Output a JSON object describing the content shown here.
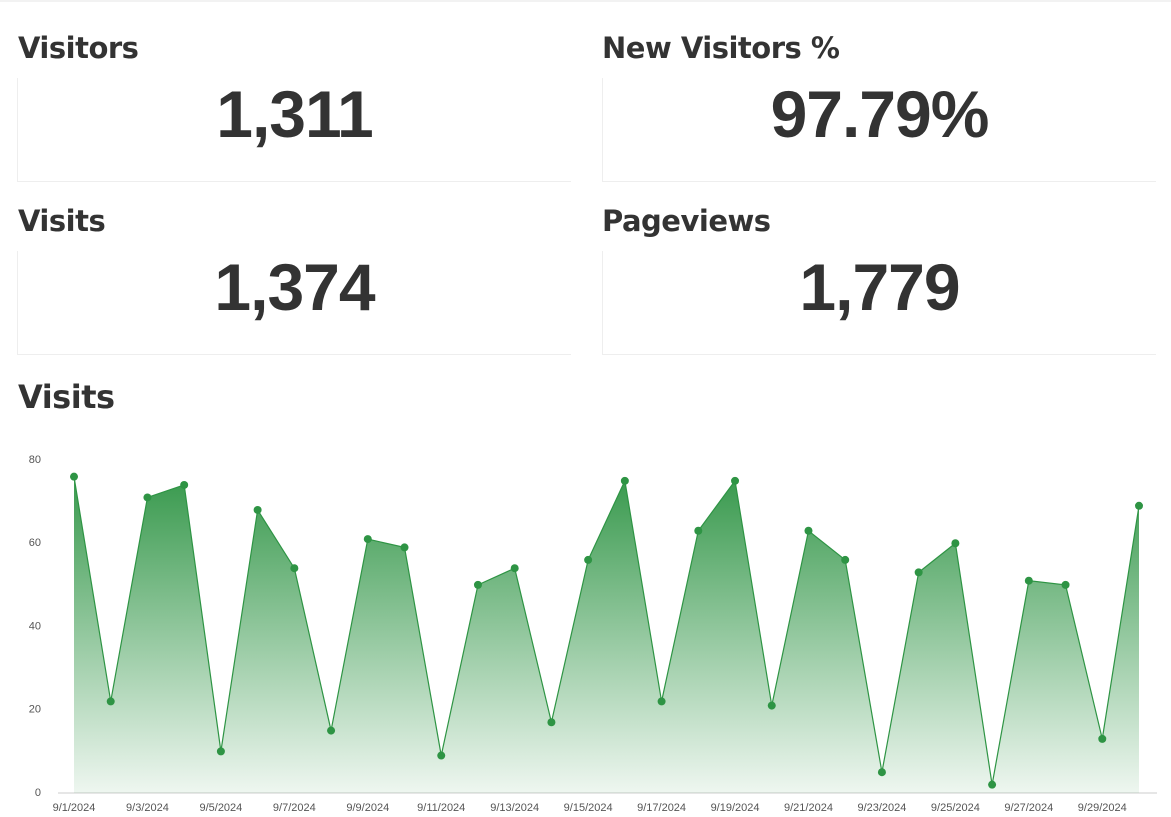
{
  "kpis": [
    {
      "label": "Visitors",
      "value": "1,311"
    },
    {
      "label": "New Visitors %",
      "value": "97.79%"
    },
    {
      "label": "Visits",
      "value": "1,374"
    },
    {
      "label": "Pageviews",
      "value": "1,779"
    }
  ],
  "chart_data": {
    "type": "area",
    "title": "Visits",
    "categories": [
      "9/1/2024",
      null,
      "9/3/2024",
      null,
      "9/5/2024",
      null,
      "9/7/2024",
      null,
      "9/9/2024",
      null,
      "9/11/2024",
      null,
      "9/13/2024",
      null,
      "9/15/2024",
      null,
      "9/17/2024",
      null,
      "9/19/2024",
      null,
      "9/21/2024",
      null,
      "9/23/2024",
      null,
      "9/25/2024",
      null,
      "9/27/2024",
      null,
      "9/29/2024",
      null
    ],
    "values": [
      76,
      22,
      71,
      74,
      10,
      68,
      54,
      15,
      61,
      59,
      9,
      50,
      54,
      17,
      56,
      75,
      22,
      63,
      75,
      21,
      63,
      56,
      5,
      53,
      60,
      2,
      51,
      50,
      13,
      69
    ],
    "color": "#2e9444",
    "ylim": [
      0,
      80
    ],
    "yticks": [
      0,
      20,
      40,
      60,
      80
    ]
  }
}
